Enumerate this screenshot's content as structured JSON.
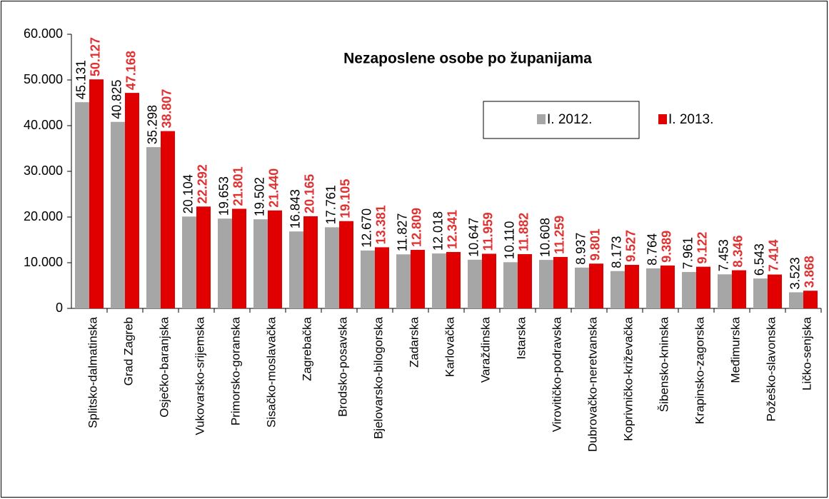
{
  "chart_data": {
    "type": "bar",
    "title": "Nezaposlene osobe po županijama",
    "categories": [
      "Splitsko-dalmatinska",
      "Grad Zagreb",
      "Osječko-baranjska",
      "Vukovarsko-srijemska",
      "Primorsko-goranska",
      "Sisačko-moslavačka",
      "Zagrebačka",
      "Brodsko-posavska",
      "Bjelovarsko-bilogorska",
      "Zadarska",
      "Karlovačka",
      "Varaždinska",
      "Istarska",
      "Virovitičko-podravska",
      "Dubrovačko-neretvanska",
      "Koprivničko-križevačka",
      "Šibensko-kninska",
      "Krapinsko-zagorska",
      "Međimurska",
      "Požeško-slavonska",
      "Ličko-senjska"
    ],
    "series": [
      {
        "name": "I. 2012.",
        "color": "#a6a6a6",
        "values": [
          45131,
          40825,
          35298,
          20104,
          19653,
          19502,
          16843,
          17761,
          12670,
          11827,
          12018,
          10647,
          10110,
          10608,
          8937,
          8173,
          8764,
          7961,
          7453,
          6543,
          3523
        ],
        "value_labels": [
          "45.131",
          "40.825",
          "35.298",
          "20.104",
          "19.653",
          "19.502",
          "16.843",
          "17.761",
          "12.670",
          "11.827",
          "12.018",
          "10.647",
          "10.110",
          "10.608",
          "8.937",
          "8.173",
          "8.764",
          "7.961",
          "7.453",
          "6.543",
          "3.523"
        ]
      },
      {
        "name": "I. 2013.",
        "color": "#e00000",
        "values": [
          50127,
          47168,
          38807,
          22292,
          21801,
          21440,
          20165,
          19105,
          13381,
          12809,
          12341,
          11959,
          11882,
          11259,
          9801,
          9527,
          9389,
          9122,
          8346,
          7414,
          3868
        ],
        "value_labels": [
          "50.127",
          "47.168",
          "38.807",
          "22.292",
          "21.801",
          "21.440",
          "20.165",
          "19.105",
          "13.381",
          "12.809",
          "12.341",
          "11.959",
          "11.882",
          "11.259",
          "9.801",
          "9.527",
          "9.389",
          "9.122",
          "8.346",
          "7.414",
          "3.868"
        ]
      }
    ],
    "ylim": [
      0,
      60000
    ],
    "yticks": [
      0,
      {
        "value": 10000,
        "label": "10.000"
      },
      {
        "value": 20000,
        "label": "20.000"
      },
      {
        "value": 30000,
        "label": "30.000"
      },
      {
        "value": 40000,
        "label": "40.000"
      },
      {
        "value": 50000,
        "label": "50.000"
      },
      {
        "value": 60000,
        "label": "60.000"
      }
    ],
    "grid": false
  }
}
